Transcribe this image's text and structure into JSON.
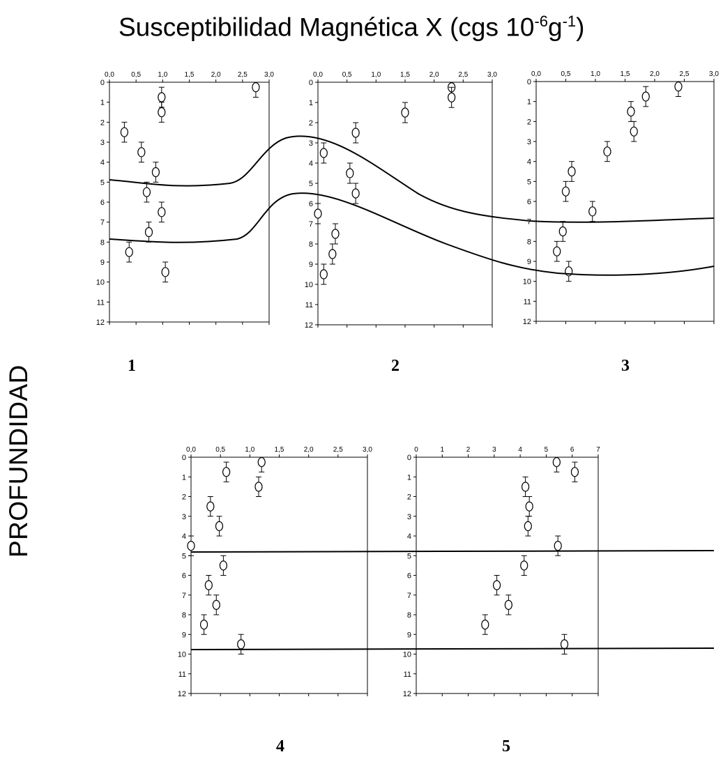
{
  "title": {
    "main": "Susceptibilidad Magnética X (cgs 10",
    "exp1": "-6",
    "mid": "g",
    "exp2": "-1",
    "end": ")"
  },
  "ylabel": "PROFUNDIDAD",
  "chart_data": [
    {
      "type": "scatter",
      "label": "1",
      "xlim": [
        0,
        3
      ],
      "ylim": [
        0,
        12
      ],
      "y_inverted": true,
      "x_ticks": [
        "0,0",
        "0,5",
        "1,0",
        "1,5",
        "2,0",
        "2,5",
        "3,0"
      ],
      "y_ticks": [
        "0",
        "1",
        "2",
        "3",
        "4",
        "5",
        "6",
        "7",
        "8",
        "9",
        "10",
        "11",
        "12"
      ],
      "points": [
        {
          "x": 2.75,
          "y": 0.25
        },
        {
          "x": 0.98,
          "y": 0.75
        },
        {
          "x": 0.98,
          "y": 1.5
        },
        {
          "x": 0.28,
          "y": 2.5
        },
        {
          "x": 0.6,
          "y": 3.5
        },
        {
          "x": 0.87,
          "y": 4.5
        },
        {
          "x": 0.7,
          "y": 5.5
        },
        {
          "x": 0.98,
          "y": 6.5
        },
        {
          "x": 0.74,
          "y": 7.5
        },
        {
          "x": 0.37,
          "y": 8.5
        },
        {
          "x": 1.05,
          "y": 9.5
        }
      ],
      "error_y": 0.5
    },
    {
      "type": "scatter",
      "label": "2",
      "xlim": [
        0,
        3
      ],
      "ylim": [
        0,
        12
      ],
      "y_inverted": true,
      "x_ticks": [
        "0,0",
        "0,5",
        "1,0",
        "1,5",
        "2,0",
        "2,5",
        "3,0"
      ],
      "y_ticks": [
        "0",
        "1",
        "2",
        "3",
        "4",
        "5",
        "6",
        "7",
        "8",
        "9",
        "10",
        "11",
        "12"
      ],
      "points": [
        {
          "x": 2.3,
          "y": 0.25
        },
        {
          "x": 2.3,
          "y": 0.75
        },
        {
          "x": 1.5,
          "y": 1.5
        },
        {
          "x": 0.65,
          "y": 2.5
        },
        {
          "x": 0.1,
          "y": 3.5
        },
        {
          "x": 0.55,
          "y": 4.5
        },
        {
          "x": 0.65,
          "y": 5.5
        },
        {
          "x": 0.0,
          "y": 6.5
        },
        {
          "x": 0.3,
          "y": 7.5
        },
        {
          "x": 0.25,
          "y": 8.5
        },
        {
          "x": 0.1,
          "y": 9.5
        }
      ],
      "error_y": 0.5
    },
    {
      "type": "scatter",
      "label": "3",
      "xlim": [
        0,
        3
      ],
      "ylim": [
        0,
        12
      ],
      "y_inverted": true,
      "x_ticks": [
        "0,0",
        "0,5",
        "1,0",
        "1,5",
        "2,0",
        "2,5",
        "3,0"
      ],
      "y_ticks": [
        "0",
        "1",
        "2",
        "3",
        "4",
        "5",
        "6",
        "7",
        "8",
        "9",
        "10",
        "11",
        "12"
      ],
      "points": [
        {
          "x": 2.4,
          "y": 0.25
        },
        {
          "x": 1.85,
          "y": 0.75
        },
        {
          "x": 1.6,
          "y": 1.5
        },
        {
          "x": 1.65,
          "y": 2.5
        },
        {
          "x": 1.2,
          "y": 3.5
        },
        {
          "x": 0.6,
          "y": 4.5
        },
        {
          "x": 0.5,
          "y": 5.5
        },
        {
          "x": 0.95,
          "y": 6.5
        },
        {
          "x": 0.45,
          "y": 7.5
        },
        {
          "x": 0.35,
          "y": 8.5
        },
        {
          "x": 0.55,
          "y": 9.5
        }
      ],
      "error_y": 0.5
    },
    {
      "type": "scatter",
      "label": "4",
      "xlim": [
        0,
        3
      ],
      "ylim": [
        0,
        12
      ],
      "y_inverted": true,
      "x_ticks": [
        "0,0",
        "0,5",
        "1,0",
        "1,5",
        "2,0",
        "2,5",
        "3,0"
      ],
      "y_ticks": [
        "0",
        "1",
        "2",
        "3",
        "4",
        "5",
        "6",
        "7",
        "8",
        "9",
        "10",
        "11",
        "12"
      ],
      "points": [
        {
          "x": 1.2,
          "y": 0.25
        },
        {
          "x": 0.6,
          "y": 0.75
        },
        {
          "x": 1.15,
          "y": 1.5
        },
        {
          "x": 0.33,
          "y": 2.5
        },
        {
          "x": 0.48,
          "y": 3.5
        },
        {
          "x": 0.0,
          "y": 4.5
        },
        {
          "x": 0.55,
          "y": 5.5
        },
        {
          "x": 0.3,
          "y": 6.5
        },
        {
          "x": 0.43,
          "y": 7.5
        },
        {
          "x": 0.22,
          "y": 8.5
        },
        {
          "x": 0.85,
          "y": 9.5
        }
      ],
      "error_y": 0.5
    },
    {
      "type": "scatter",
      "label": "5",
      "xlim": [
        0,
        7
      ],
      "ylim": [
        0,
        12
      ],
      "y_inverted": true,
      "x_ticks": [
        "0",
        "1",
        "2",
        "3",
        "4",
        "5",
        "6",
        "7"
      ],
      "y_ticks": [
        "0",
        "1",
        "2",
        "3",
        "4",
        "5",
        "6",
        "7",
        "8",
        "9",
        "10",
        "11",
        "12"
      ],
      "points": [
        {
          "x": 5.4,
          "y": 0.25
        },
        {
          "x": 6.1,
          "y": 0.75
        },
        {
          "x": 4.2,
          "y": 1.5
        },
        {
          "x": 4.35,
          "y": 2.5
        },
        {
          "x": 4.3,
          "y": 3.5
        },
        {
          "x": 5.45,
          "y": 4.5
        },
        {
          "x": 4.15,
          "y": 5.5
        },
        {
          "x": 3.1,
          "y": 6.5
        },
        {
          "x": 3.55,
          "y": 7.5
        },
        {
          "x": 2.65,
          "y": 8.5
        },
        {
          "x": 5.7,
          "y": 9.5
        }
      ],
      "error_y": 0.5
    }
  ]
}
